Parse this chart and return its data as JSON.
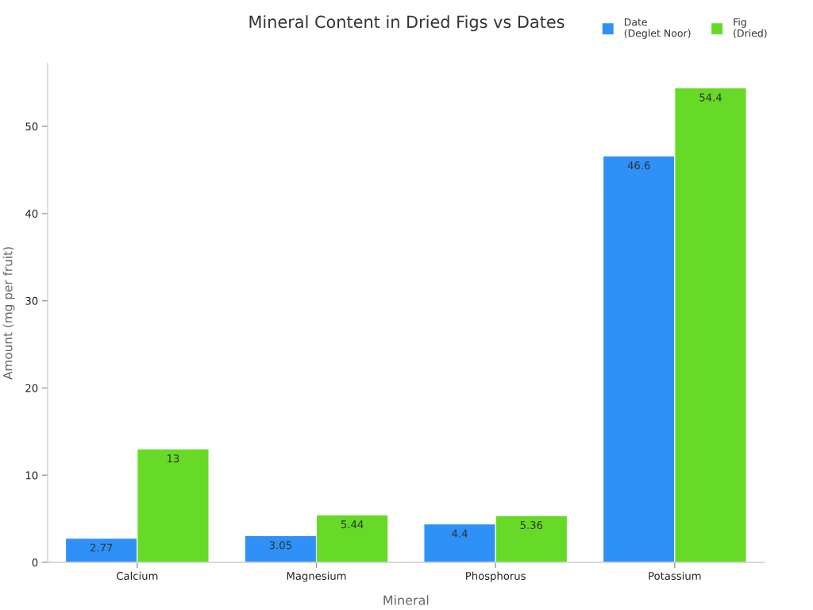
{
  "chart_data": {
    "type": "bar",
    "title": "Mineral Content in Dried Figs vs Dates",
    "xlabel": "Mineral",
    "ylabel": "Amount (mg per fruit)",
    "categories": [
      "Calcium",
      "Magnesium",
      "Phosphorus",
      "Potassium"
    ],
    "series": [
      {
        "name": "Date\n(Deglet Noor)",
        "color": "#2f91f7",
        "values": [
          2.77,
          3.05,
          4.4,
          46.6
        ]
      },
      {
        "name": "Fig\n(Dried)",
        "color": "#66da26",
        "values": [
          13,
          5.44,
          5.36,
          54.4
        ]
      }
    ],
    "ylim": [
      0,
      57.2
    ],
    "yticks": [
      0,
      10,
      20,
      30,
      40,
      50
    ],
    "data_labels": true,
    "grid": false,
    "legend": "top right"
  }
}
